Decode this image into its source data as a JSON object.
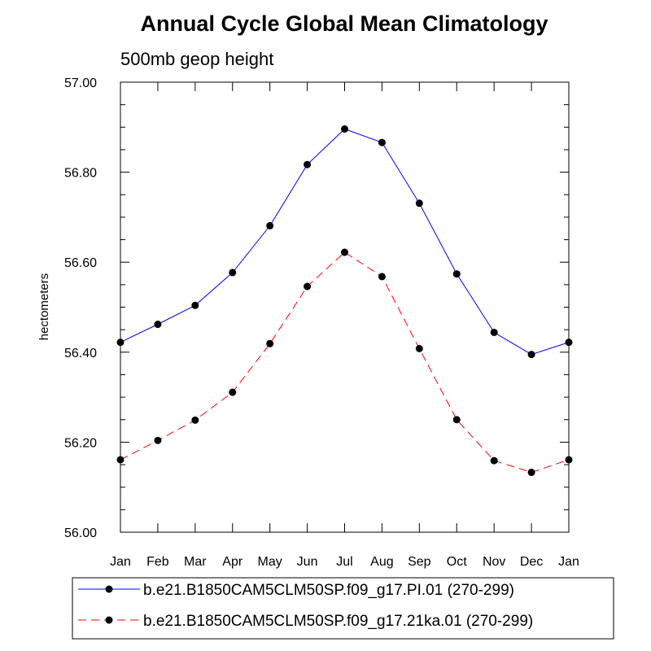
{
  "chart_data": {
    "type": "line",
    "title": "Annual Cycle Global Mean Climatology",
    "subtitle": "500mb geop height",
    "xlabel": "",
    "ylabel": "hectometers",
    "categories": [
      "Jan",
      "Feb",
      "Mar",
      "Apr",
      "May",
      "Jun",
      "Jul",
      "Aug",
      "Sep",
      "Oct",
      "Nov",
      "Dec",
      "Jan"
    ],
    "ylim": [
      56.0,
      57.0
    ],
    "yticks": [
      "56.00",
      "56.20",
      "56.40",
      "56.60",
      "56.80",
      "57.00"
    ],
    "grid": false,
    "legend_position": "bottom",
    "series": [
      {
        "name": "b.e21.B1850CAM5CLM50SP.f09_g17.PI.01 (270-299)",
        "color": "#0000ff",
        "dash": "solid",
        "marker": "filled-circle",
        "values": [
          56.422,
          56.462,
          56.504,
          56.577,
          56.681,
          56.817,
          56.896,
          56.866,
          56.731,
          56.574,
          56.444,
          56.395,
          56.422
        ]
      },
      {
        "name": "b.e21.B1850CAM5CLM50SP.f09_g17.21ka.01 (270-299)",
        "color": "#ff0000",
        "dash": "dashed",
        "marker": "filled-circle",
        "values": [
          56.161,
          56.204,
          56.249,
          56.311,
          56.419,
          56.546,
          56.622,
          56.568,
          56.408,
          56.25,
          56.159,
          56.133,
          56.161
        ]
      }
    ]
  }
}
